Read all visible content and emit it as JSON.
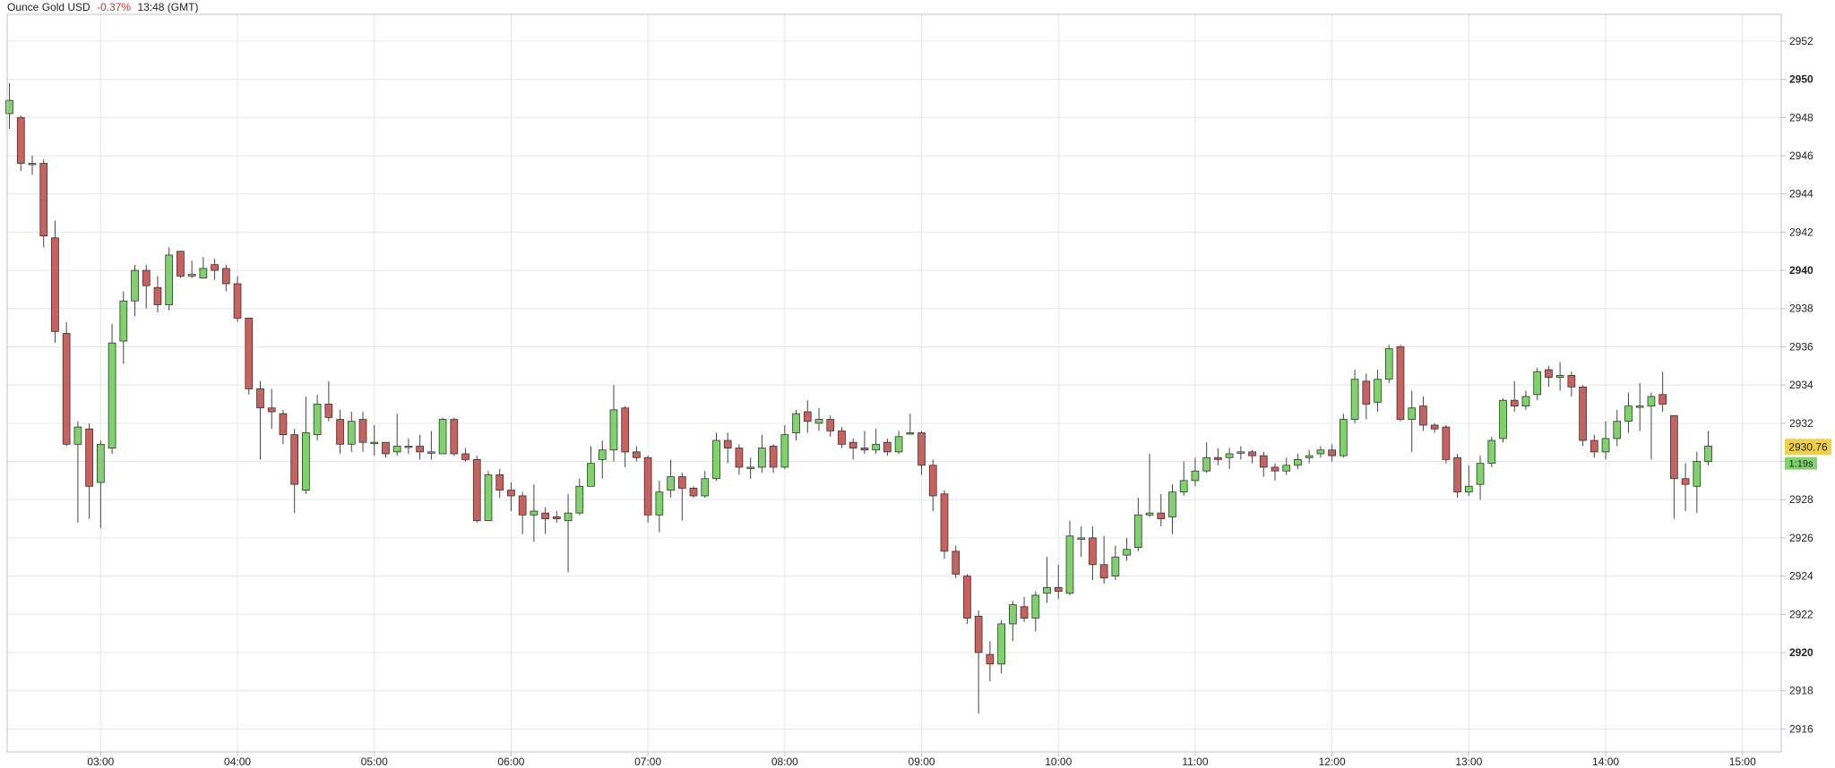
{
  "header": {
    "instrument": "Ounce Gold USD",
    "change": "-0.37%",
    "time": "13:48 (GMT)"
  },
  "colors": {
    "up": "#7ed46a",
    "down": "#c9625f",
    "grid": "#e3e7ec",
    "frame": "#b9c4cf",
    "change": "#c0392b",
    "price_tag": "#f0d04a"
  },
  "chart_data": {
    "type": "candlestick",
    "xlabel": "",
    "ylabel": "",
    "ylim": [
      2914.8,
      2953.4
    ],
    "y_ticks": [
      {
        "label": "2952",
        "value": 2952,
        "bold": false
      },
      {
        "label": "2950",
        "value": 2950,
        "bold": true
      },
      {
        "label": "2948",
        "value": 2948,
        "bold": false
      },
      {
        "label": "2946",
        "value": 2946,
        "bold": false
      },
      {
        "label": "2944",
        "value": 2944,
        "bold": false
      },
      {
        "label": "2942",
        "value": 2942,
        "bold": false
      },
      {
        "label": "2940",
        "value": 2940,
        "bold": true
      },
      {
        "label": "2938",
        "value": 2938,
        "bold": false
      },
      {
        "label": "2936",
        "value": 2936,
        "bold": false
      },
      {
        "label": "2934",
        "value": 2934,
        "bold": false
      },
      {
        "label": "2932",
        "value": 2932,
        "bold": false
      },
      {
        "label": "2930",
        "value": 2930,
        "bold": false
      },
      {
        "label": "2928",
        "value": 2928,
        "bold": false
      },
      {
        "label": "2926",
        "value": 2926,
        "bold": false
      },
      {
        "label": "2924",
        "value": 2924,
        "bold": false
      },
      {
        "label": "2922",
        "value": 2922,
        "bold": false
      },
      {
        "label": "2920",
        "value": 2920,
        "bold": true
      },
      {
        "label": "2918",
        "value": 2918,
        "bold": false
      },
      {
        "label": "2916",
        "value": 2916,
        "bold": false
      }
    ],
    "x_ticks": [
      {
        "label": "03:00",
        "minutes": 180
      },
      {
        "label": "04:00",
        "minutes": 240
      },
      {
        "label": "05:00",
        "minutes": 300
      },
      {
        "label": "06:00",
        "minutes": 360
      },
      {
        "label": "07:00",
        "minutes": 420
      },
      {
        "label": "08:00",
        "minutes": 480
      },
      {
        "label": "09:00",
        "minutes": 540
      },
      {
        "label": "10:00",
        "minutes": 600
      },
      {
        "label": "11:00",
        "minutes": 660
      },
      {
        "label": "12:00",
        "minutes": 720
      },
      {
        "label": "13:00",
        "minutes": 780
      },
      {
        "label": "14:00",
        "minutes": 840
      },
      {
        "label": "15:00",
        "minutes": 900
      }
    ],
    "xlim_minutes": [
      139,
      917
    ],
    "grid": true,
    "current_price": {
      "label": "2930.76",
      "value": 2930.76
    },
    "countdown": {
      "label": "1:19s",
      "value": 2929.9
    },
    "candles_interval_minutes": 5,
    "candles": [
      [
        140,
        2948.2,
        2948.9,
        2949.8,
        2947.4
      ],
      [
        145,
        2948.0,
        2945.6,
        2948.1,
        2945.2
      ],
      [
        150,
        2945.6,
        2945.6,
        2946.0,
        2945.0
      ],
      [
        155,
        2945.6,
        2941.8,
        2945.8,
        2941.2
      ],
      [
        160,
        2941.7,
        2936.8,
        2942.6,
        2936.2
      ],
      [
        165,
        2936.7,
        2930.9,
        2937.3,
        2930.8
      ],
      [
        170,
        2930.9,
        2931.8,
        2932.1,
        2926.8
      ],
      [
        175,
        2931.7,
        2928.7,
        2932.0,
        2927.0
      ],
      [
        180,
        2928.9,
        2930.9,
        2931.1,
        2926.5
      ],
      [
        185,
        2930.7,
        2936.2,
        2937.2,
        2930.4
      ],
      [
        190,
        2936.3,
        2938.4,
        2938.9,
        2935.1
      ],
      [
        195,
        2938.4,
        2940.0,
        2940.3,
        2937.6
      ],
      [
        200,
        2940.0,
        2939.2,
        2940.3,
        2938.0
      ],
      [
        205,
        2939.1,
        2938.2,
        2939.7,
        2937.8
      ],
      [
        210,
        2938.2,
        2940.8,
        2941.2,
        2937.9
      ],
      [
        215,
        2941.0,
        2939.7,
        2941.0,
        2939.6
      ],
      [
        220,
        2939.7,
        2939.8,
        2940.5,
        2939.6
      ],
      [
        225,
        2939.6,
        2940.1,
        2940.7,
        2939.6
      ],
      [
        230,
        2940.3,
        2940.0,
        2940.6,
        2939.5
      ],
      [
        235,
        2940.1,
        2939.3,
        2940.3,
        2938.9
      ],
      [
        240,
        2939.3,
        2937.5,
        2939.7,
        2937.3
      ],
      [
        245,
        2937.5,
        2933.8,
        2937.5,
        2933.5
      ],
      [
        250,
        2933.8,
        2932.8,
        2934.2,
        2930.1
      ],
      [
        255,
        2932.8,
        2932.6,
        2933.8,
        2931.7
      ],
      [
        260,
        2932.5,
        2931.4,
        2932.7,
        2930.9
      ],
      [
        265,
        2931.4,
        2928.8,
        2931.7,
        2927.3
      ],
      [
        270,
        2928.5,
        2931.5,
        2933.4,
        2928.3
      ],
      [
        275,
        2931.4,
        2933.0,
        2933.5,
        2931.1
      ],
      [
        280,
        2933.0,
        2932.3,
        2934.2,
        2932.1
      ],
      [
        285,
        2932.2,
        2930.9,
        2932.7,
        2930.4
      ],
      [
        290,
        2930.9,
        2932.1,
        2932.6,
        2930.5
      ],
      [
        295,
        2932.2,
        2931.0,
        2932.6,
        2930.5
      ],
      [
        300,
        2931.0,
        2931.0,
        2931.9,
        2930.3
      ],
      [
        305,
        2931.0,
        2930.4,
        2931.0,
        2930.2
      ],
      [
        310,
        2930.5,
        2930.8,
        2932.5,
        2930.3
      ],
      [
        315,
        2930.8,
        2930.8,
        2931.2,
        2930.4
      ],
      [
        320,
        2930.8,
        2930.5,
        2931.4,
        2930.1
      ],
      [
        325,
        2930.5,
        2930.5,
        2931.6,
        2930.1
      ],
      [
        330,
        2930.4,
        2932.2,
        2932.3,
        2930.4
      ],
      [
        335,
        2932.2,
        2930.4,
        2932.3,
        2930.3
      ],
      [
        340,
        2930.4,
        2930.1,
        2930.7,
        2930.0
      ],
      [
        345,
        2930.1,
        2926.9,
        2930.3,
        2926.8
      ],
      [
        350,
        2926.9,
        2929.3,
        2929.5,
        2926.9
      ],
      [
        355,
        2929.3,
        2928.5,
        2929.6,
        2928.1
      ],
      [
        360,
        2928.5,
        2928.2,
        2928.9,
        2927.4
      ],
      [
        365,
        2928.2,
        2927.2,
        2928.4,
        2926.2
      ],
      [
        370,
        2927.2,
        2927.4,
        2928.8,
        2925.8
      ],
      [
        375,
        2927.3,
        2927.0,
        2927.6,
        2926.2
      ],
      [
        380,
        2927.1,
        2927.0,
        2927.4,
        2926.8
      ],
      [
        385,
        2926.9,
        2927.3,
        2928.3,
        2924.2
      ],
      [
        390,
        2927.3,
        2928.7,
        2929.1,
        2927.2
      ],
      [
        395,
        2928.7,
        2929.9,
        2930.8,
        2928.7
      ],
      [
        400,
        2930.1,
        2930.6,
        2931.1,
        2929.1
      ],
      [
        405,
        2930.6,
        2932.7,
        2934.0,
        2930.0
      ],
      [
        410,
        2932.8,
        2930.5,
        2932.9,
        2929.7
      ],
      [
        415,
        2930.5,
        2930.2,
        2930.8,
        2930.0
      ],
      [
        420,
        2930.2,
        2927.2,
        2930.3,
        2926.8
      ],
      [
        425,
        2927.2,
        2928.4,
        2929.0,
        2926.3
      ],
      [
        430,
        2928.5,
        2929.2,
        2930.1,
        2928.1
      ],
      [
        435,
        2929.2,
        2928.6,
        2929.4,
        2926.9
      ],
      [
        440,
        2928.6,
        2928.2,
        2928.7,
        2928.1
      ],
      [
        445,
        2928.2,
        2929.1,
        2929.5,
        2928.1
      ],
      [
        450,
        2929.1,
        2931.1,
        2931.5,
        2929.0
      ],
      [
        455,
        2931.1,
        2930.7,
        2931.5,
        2929.9
      ],
      [
        460,
        2930.7,
        2929.7,
        2930.9,
        2929.3
      ],
      [
        465,
        2929.7,
        2929.7,
        2930.2,
        2929.1
      ],
      [
        470,
        2929.7,
        2930.7,
        2931.4,
        2929.4
      ],
      [
        475,
        2930.8,
        2929.7,
        2930.9,
        2929.4
      ],
      [
        480,
        2929.7,
        2931.4,
        2931.9,
        2929.6
      ],
      [
        485,
        2931.5,
        2932.5,
        2932.7,
        2931.1
      ],
      [
        490,
        2932.6,
        2932.1,
        2933.2,
        2931.5
      ],
      [
        495,
        2932.0,
        2932.2,
        2932.8,
        2931.6
      ],
      [
        500,
        2932.2,
        2931.6,
        2932.4,
        2931.3
      ],
      [
        505,
        2931.6,
        2930.9,
        2931.8,
        2930.7
      ],
      [
        510,
        2931.0,
        2930.7,
        2931.2,
        2930.1
      ],
      [
        515,
        2930.7,
        2930.6,
        2931.6,
        2930.4
      ],
      [
        520,
        2930.6,
        2930.9,
        2931.7,
        2930.4
      ],
      [
        525,
        2931.0,
        2930.5,
        2931.2,
        2930.3
      ],
      [
        530,
        2930.5,
        2931.3,
        2931.6,
        2930.4
      ],
      [
        535,
        2931.5,
        2931.5,
        2932.5,
        2931.4
      ],
      [
        540,
        2931.5,
        2929.8,
        2931.6,
        2929.3
      ],
      [
        545,
        2929.8,
        2928.2,
        2930.1,
        2927.4
      ],
      [
        550,
        2928.3,
        2925.3,
        2928.5,
        2924.9
      ],
      [
        555,
        2925.3,
        2924.1,
        2925.6,
        2923.9
      ],
      [
        560,
        2924.0,
        2921.8,
        2924.1,
        2921.5
      ],
      [
        565,
        2921.9,
        2920.0,
        2922.2,
        2916.8
      ],
      [
        570,
        2919.9,
        2919.4,
        2920.6,
        2918.5
      ],
      [
        575,
        2919.4,
        2921.5,
        2921.7,
        2918.9
      ],
      [
        580,
        2921.5,
        2922.5,
        2922.7,
        2920.6
      ],
      [
        585,
        2922.4,
        2921.8,
        2922.9,
        2921.6
      ],
      [
        590,
        2921.8,
        2923.0,
        2923.2,
        2921.1
      ],
      [
        595,
        2923.1,
        2923.4,
        2925.0,
        2922.6
      ],
      [
        600,
        2923.4,
        2923.2,
        2924.6,
        2922.8
      ],
      [
        605,
        2923.1,
        2926.1,
        2926.9,
        2923.0
      ],
      [
        610,
        2926.0,
        2926.0,
        2926.6,
        2925.0
      ],
      [
        615,
        2926.0,
        2924.6,
        2926.6,
        2923.8
      ],
      [
        620,
        2924.6,
        2923.9,
        2926.1,
        2923.6
      ],
      [
        625,
        2924.0,
        2925.0,
        2925.6,
        2923.8
      ],
      [
        630,
        2925.1,
        2925.4,
        2926.0,
        2924.8
      ],
      [
        635,
        2925.5,
        2927.2,
        2928.1,
        2925.3
      ],
      [
        640,
        2927.2,
        2927.3,
        2930.4,
        2927.1
      ],
      [
        645,
        2927.3,
        2927.0,
        2928.3,
        2926.6
      ],
      [
        650,
        2927.1,
        2928.4,
        2928.8,
        2926.2
      ],
      [
        655,
        2928.4,
        2929.0,
        2930.0,
        2928.2
      ],
      [
        660,
        2929.0,
        2929.5,
        2930.2,
        2928.7
      ],
      [
        665,
        2929.5,
        2930.2,
        2931.0,
        2929.4
      ],
      [
        670,
        2930.2,
        2930.1,
        2930.7,
        2929.8
      ],
      [
        675,
        2930.2,
        2930.4,
        2930.7,
        2929.6
      ],
      [
        680,
        2930.5,
        2930.5,
        2930.8,
        2930.1
      ],
      [
        685,
        2930.5,
        2930.3,
        2930.6,
        2929.9
      ],
      [
        690,
        2930.3,
        2929.7,
        2930.5,
        2929.2
      ],
      [
        695,
        2929.7,
        2929.5,
        2929.9,
        2929.0
      ],
      [
        700,
        2929.5,
        2929.8,
        2930.2,
        2929.3
      ],
      [
        705,
        2929.8,
        2930.1,
        2930.4,
        2929.6
      ],
      [
        710,
        2930.2,
        2930.3,
        2930.6,
        2929.9
      ],
      [
        715,
        2930.4,
        2930.6,
        2930.8,
        2930.2
      ],
      [
        720,
        2930.6,
        2930.3,
        2930.9,
        2930.0
      ],
      [
        725,
        2930.3,
        2932.2,
        2932.5,
        2930.2
      ],
      [
        730,
        2932.2,
        2934.3,
        2934.8,
        2932.0
      ],
      [
        735,
        2934.2,
        2933.0,
        2934.6,
        2932.2
      ],
      [
        740,
        2933.1,
        2934.3,
        2934.8,
        2932.6
      ],
      [
        745,
        2934.3,
        2935.9,
        2936.1,
        2934.1
      ],
      [
        750,
        2936.0,
        2932.2,
        2936.1,
        2932.1
      ],
      [
        755,
        2932.2,
        2932.8,
        2933.7,
        2930.5
      ],
      [
        760,
        2932.9,
        2931.9,
        2933.4,
        2931.6
      ],
      [
        765,
        2931.9,
        2931.7,
        2932.0,
        2931.5
      ],
      [
        770,
        2931.8,
        2930.1,
        2931.9,
        2929.9
      ],
      [
        775,
        2930.2,
        2928.4,
        2930.4,
        2928.1
      ],
      [
        780,
        2928.4,
        2928.7,
        2929.8,
        2928.2
      ],
      [
        785,
        2928.8,
        2929.9,
        2930.3,
        2928.0
      ],
      [
        790,
        2929.9,
        2931.1,
        2931.3,
        2929.7
      ],
      [
        795,
        2931.2,
        2933.2,
        2933.3,
        2931.0
      ],
      [
        800,
        2933.2,
        2932.9,
        2934.2,
        2932.6
      ],
      [
        805,
        2932.9,
        2933.4,
        2933.7,
        2932.7
      ],
      [
        810,
        2933.5,
        2934.7,
        2934.9,
        2933.2
      ],
      [
        815,
        2934.8,
        2934.4,
        2935.0,
        2933.9
      ],
      [
        820,
        2934.4,
        2934.5,
        2935.2,
        2933.7
      ],
      [
        825,
        2934.5,
        2933.9,
        2934.7,
        2933.4
      ],
      [
        830,
        2933.9,
        2931.1,
        2934.0,
        2930.8
      ],
      [
        835,
        2931.1,
        2930.5,
        2931.4,
        2930.2
      ],
      [
        840,
        2930.5,
        2931.2,
        2932.1,
        2930.1
      ],
      [
        845,
        2931.2,
        2932.1,
        2932.7,
        2930.8
      ],
      [
        850,
        2932.1,
        2932.9,
        2933.6,
        2931.5
      ],
      [
        855,
        2932.9,
        2932.9,
        2934.1,
        2931.6
      ],
      [
        860,
        2932.9,
        2933.4,
        2933.6,
        2930.1
      ],
      [
        865,
        2933.5,
        2933.0,
        2934.7,
        2932.6
      ],
      [
        870,
        2932.4,
        2929.1,
        2932.4,
        2927.0
      ],
      [
        875,
        2929.1,
        2928.8,
        2929.9,
        2927.4
      ],
      [
        880,
        2928.7,
        2930.0,
        2930.5,
        2927.3
      ],
      [
        885,
        2930.0,
        2930.8,
        2931.6,
        2929.8
      ]
    ]
  }
}
